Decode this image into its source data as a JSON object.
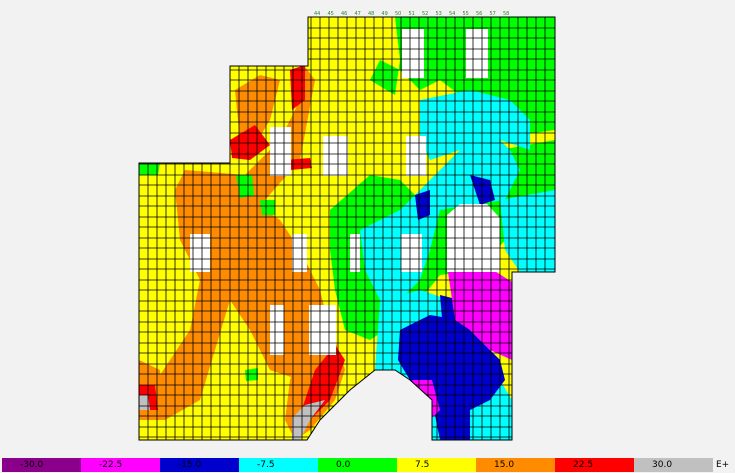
{
  "legend": {
    "values": [
      "-30.0",
      "-22.5",
      "-15.0",
      "-7.5",
      "0.0",
      "7.5",
      "15.0",
      "22.5",
      "30.0"
    ],
    "colors": [
      "#8b008b",
      "#ff00ff",
      "#0000cd",
      "#00ffff",
      "#00ff00",
      "#ffff00",
      "#ff8c00",
      "#ff0000",
      "#c0c0c0"
    ],
    "exponent": "E+"
  },
  "plan": {
    "column_labels": [
      "44",
      "45",
      "46",
      "47",
      "48",
      "49",
      "50",
      "51",
      "52",
      "53",
      "54",
      "55",
      "56",
      "57",
      "58"
    ]
  }
}
